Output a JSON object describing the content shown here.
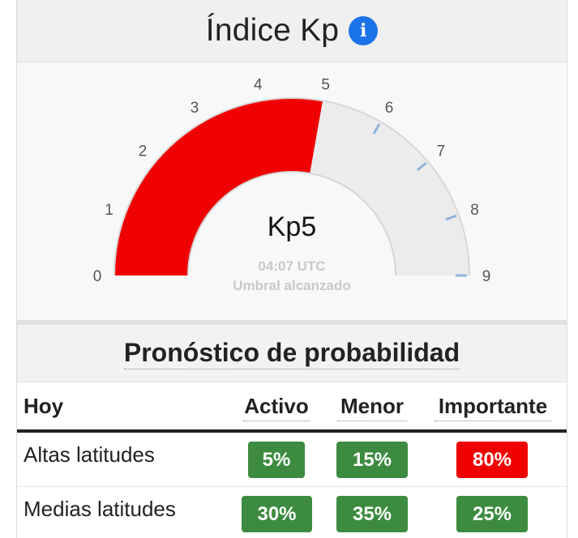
{
  "header": {
    "title": "Índice Kp",
    "info_icon": "info-circle-icon"
  },
  "gauge": {
    "min": 0,
    "max": 9,
    "value": 5,
    "ticks": [
      "0",
      "1",
      "2",
      "3",
      "4",
      "5",
      "6",
      "7",
      "8",
      "9"
    ],
    "value_label": "Kp5",
    "time": "04:07 UTC",
    "status": "Umbral alcanzado",
    "fill_color": "#f00000",
    "track_color": "#ececec",
    "threshold_marker_color": "#8fb3d9"
  },
  "forecast": {
    "title": "Pronóstico de probabilidad",
    "columns": {
      "label": "Hoy",
      "activo": "Activo",
      "menor": "Menor",
      "importante": "Importante"
    },
    "rows": [
      {
        "label": "Altas latitudes",
        "activo": "5%",
        "menor": "15%",
        "importante": "80%",
        "importante_color": "#f00000"
      },
      {
        "label": "Medias latitudes",
        "activo": "30%",
        "menor": "35%",
        "importante": "25%",
        "importante_color": "#3d8b40"
      }
    ],
    "green": "#3d8b40"
  }
}
